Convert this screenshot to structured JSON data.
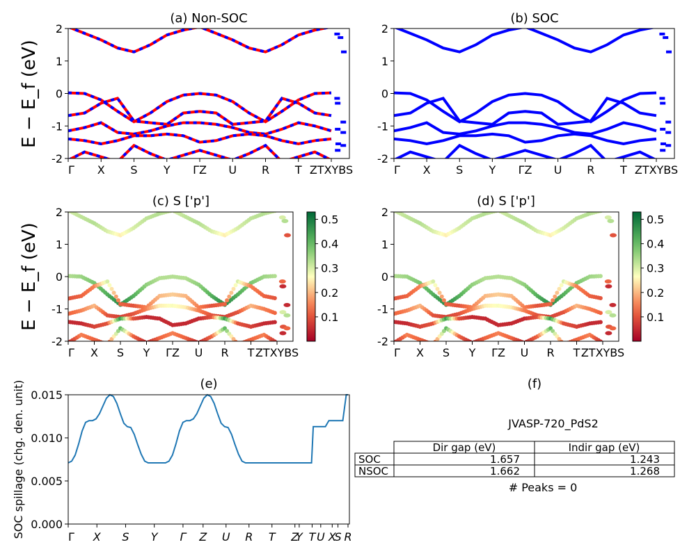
{
  "figure": {
    "material": "JVASP-720_PdS2"
  },
  "chart_data": [
    {
      "id": "a",
      "type": "line",
      "title": "(a) Non-SOC",
      "ylabel": "E − E_f (eV)",
      "ylim": [
        -2,
        2
      ],
      "yticks": [
        -2,
        -1,
        0,
        1,
        2
      ],
      "xticks": [
        "Γ",
        "X",
        "S",
        "Y",
        "ΓZ",
        "U",
        "R",
        "T",
        "ZTXYBS"
      ],
      "series_colors": [
        "#ff0000",
        "#0000ff"
      ],
      "bands": [
        {
          "x": [
            0,
            0.5,
            1,
            1.5,
            2,
            2.5,
            3,
            3.5,
            4,
            4.5,
            5,
            5.5,
            6,
            6.5,
            7,
            7.5,
            8
          ],
          "y": [
            2.05,
            1.85,
            1.65,
            1.4,
            1.28,
            1.5,
            1.8,
            1.95,
            2.05,
            1.85,
            1.65,
            1.4,
            1.28,
            1.5,
            1.8,
            1.95,
            2.05
          ]
        },
        {
          "x": [
            0,
            0.5,
            1,
            1.5,
            2,
            2.5,
            3,
            3.5,
            4,
            4.5,
            5,
            5.5,
            6,
            6.5,
            7,
            7.5,
            8
          ],
          "y": [
            0.02,
            0,
            -0.2,
            -0.55,
            -0.87,
            -0.6,
            -0.25,
            -0.05,
            0,
            -0.05,
            -0.25,
            -0.6,
            -0.87,
            -0.55,
            -0.2,
            0,
            0.02
          ]
        },
        {
          "x": [
            0,
            0.5,
            1,
            1.5,
            2,
            2.5,
            3,
            3.5,
            4,
            4.5,
            5,
            5.5,
            6,
            6.5,
            7,
            7.5,
            8
          ],
          "y": [
            -0.68,
            -0.6,
            -0.3,
            -0.15,
            -0.85,
            -0.9,
            -0.95,
            -0.6,
            -0.55,
            -0.6,
            -0.95,
            -0.9,
            -0.85,
            -0.15,
            -0.3,
            -0.6,
            -0.68
          ]
        },
        {
          "x": [
            0,
            0.5,
            1,
            1.5,
            2,
            2.5,
            3,
            3.5,
            4,
            4.5,
            5,
            5.5,
            6,
            6.5,
            7,
            7.5,
            8
          ],
          "y": [
            -1.15,
            -1.05,
            -0.9,
            -1.2,
            -1.25,
            -1.15,
            -1.0,
            -0.9,
            -0.9,
            -0.95,
            -1.05,
            -1.2,
            -1.25,
            -1.1,
            -0.9,
            -1.0,
            -1.15
          ]
        },
        {
          "x": [
            0,
            0.5,
            1,
            1.5,
            2,
            2.5,
            3,
            3.5,
            4,
            4.5,
            5,
            5.5,
            6,
            6.5,
            7,
            7.5,
            8
          ],
          "y": [
            -1.4,
            -1.45,
            -1.55,
            -1.45,
            -1.3,
            -1.3,
            -1.25,
            -1.3,
            -1.5,
            -1.45,
            -1.3,
            -1.25,
            -1.3,
            -1.45,
            -1.55,
            -1.45,
            -1.4
          ]
        },
        {
          "x": [
            0,
            0.5,
            1,
            1.5,
            2,
            2.5,
            3,
            3.5,
            4,
            4.5,
            5,
            5.5,
            6,
            6.5,
            7,
            7.5,
            8
          ],
          "y": [
            -2.05,
            -1.8,
            -1.95,
            -2.1,
            -1.6,
            -1.85,
            -2.05,
            -1.9,
            -1.75,
            -1.9,
            -2.05,
            -1.85,
            -1.6,
            -2.1,
            -1.95,
            -1.8,
            -2.05
          ]
        }
      ],
      "end_marks": [
        {
          "x": 0.15,
          "y": 1.83
        },
        {
          "x": 0.45,
          "y": 1.72
        },
        {
          "x": 0.75,
          "y": 1.28
        },
        {
          "x": 0.15,
          "y": -0.15
        },
        {
          "x": 0.2,
          "y": -0.3
        },
        {
          "x": 0.7,
          "y": -0.88
        },
        {
          "x": 0.2,
          "y": -1.1
        },
        {
          "x": 0.7,
          "y": -1.2
        },
        {
          "x": 0.25,
          "y": -1.55
        },
        {
          "x": 0.7,
          "y": -1.6
        },
        {
          "x": 0.2,
          "y": -1.75
        }
      ]
    },
    {
      "id": "b",
      "type": "line",
      "title": "(b) SOC",
      "ylim": [
        -2,
        2
      ],
      "yticks": [
        -2,
        -1,
        0,
        1,
        2
      ],
      "xticks": [
        "Γ",
        "X",
        "S",
        "Y",
        "ΓZ",
        "U",
        "R",
        "T",
        "ZTXYBS"
      ],
      "series_colors": [
        "#0000ff"
      ],
      "bands": [
        {
          "x": [
            0,
            0.5,
            1,
            1.5,
            2,
            2.5,
            3,
            3.5,
            4,
            4.5,
            5,
            5.5,
            6,
            6.5,
            7,
            7.5,
            8
          ],
          "y": [
            2.05,
            1.85,
            1.65,
            1.4,
            1.28,
            1.5,
            1.8,
            1.95,
            2.05,
            1.85,
            1.65,
            1.4,
            1.28,
            1.5,
            1.8,
            1.95,
            2.05
          ]
        },
        {
          "x": [
            0,
            0.5,
            1,
            1.5,
            2,
            2.5,
            3,
            3.5,
            4,
            4.5,
            5,
            5.5,
            6,
            6.5,
            7,
            7.5,
            8
          ],
          "y": [
            0.02,
            0,
            -0.2,
            -0.55,
            -0.87,
            -0.6,
            -0.25,
            -0.05,
            0,
            -0.05,
            -0.25,
            -0.6,
            -0.87,
            -0.55,
            -0.2,
            0,
            0.02
          ]
        },
        {
          "x": [
            0,
            0.5,
            1,
            1.5,
            2,
            2.5,
            3,
            3.5,
            4,
            4.5,
            5,
            5.5,
            6,
            6.5,
            7,
            7.5,
            8
          ],
          "y": [
            -0.68,
            -0.6,
            -0.3,
            -0.15,
            -0.85,
            -0.9,
            -0.95,
            -0.6,
            -0.55,
            -0.6,
            -0.95,
            -0.9,
            -0.85,
            -0.15,
            -0.3,
            -0.6,
            -0.68
          ]
        },
        {
          "x": [
            0,
            0.5,
            1,
            1.5,
            2,
            2.5,
            3,
            3.5,
            4,
            4.5,
            5,
            5.5,
            6,
            6.5,
            7,
            7.5,
            8
          ],
          "y": [
            -1.15,
            -1.05,
            -0.9,
            -1.2,
            -1.25,
            -1.15,
            -1.0,
            -0.9,
            -0.9,
            -0.95,
            -1.05,
            -1.2,
            -1.25,
            -1.1,
            -0.9,
            -1.0,
            -1.15
          ]
        },
        {
          "x": [
            0,
            0.5,
            1,
            1.5,
            2,
            2.5,
            3,
            3.5,
            4,
            4.5,
            5,
            5.5,
            6,
            6.5,
            7,
            7.5,
            8
          ],
          "y": [
            -1.4,
            -1.45,
            -1.55,
            -1.45,
            -1.3,
            -1.3,
            -1.25,
            -1.3,
            -1.5,
            -1.45,
            -1.3,
            -1.25,
            -1.3,
            -1.45,
            -1.55,
            -1.45,
            -1.4
          ]
        },
        {
          "x": [
            0,
            0.5,
            1,
            1.5,
            2,
            2.5,
            3,
            3.5,
            4,
            4.5,
            5,
            5.5,
            6,
            6.5,
            7,
            7.5,
            8
          ],
          "y": [
            -2.05,
            -1.8,
            -1.95,
            -2.1,
            -1.6,
            -1.85,
            -2.05,
            -1.9,
            -1.75,
            -1.9,
            -2.05,
            -1.85,
            -1.6,
            -2.1,
            -1.95,
            -1.8,
            -2.05
          ]
        }
      ],
      "end_marks": [
        {
          "x": 0.15,
          "y": 1.83
        },
        {
          "x": 0.45,
          "y": 1.72
        },
        {
          "x": 0.75,
          "y": 1.28
        },
        {
          "x": 0.15,
          "y": -0.15
        },
        {
          "x": 0.2,
          "y": -0.3
        },
        {
          "x": 0.7,
          "y": -0.88
        },
        {
          "x": 0.2,
          "y": -1.1
        },
        {
          "x": 0.7,
          "y": -1.2
        },
        {
          "x": 0.25,
          "y": -1.55
        },
        {
          "x": 0.7,
          "y": -1.6
        },
        {
          "x": 0.2,
          "y": -1.75
        }
      ]
    },
    {
      "id": "c",
      "type": "scatter",
      "title": "(c)  S ['p']",
      "ylabel": "E − E_f (eV)",
      "ylim": [
        -2,
        2
      ],
      "yticks": [
        -2,
        -1,
        0,
        1,
        2
      ],
      "xticks": [
        "Γ",
        "X",
        "S",
        "Y",
        "ΓZ",
        "U",
        "R",
        "T",
        "ZTXYBS"
      ],
      "colorbar": {
        "min": 0.0,
        "max": 0.53,
        "ticks": [
          0.1,
          0.2,
          0.3,
          0.4,
          0.5
        ],
        "colormap": "RdYlGn"
      },
      "band_weights": [
        [
          0.3,
          0.32,
          0.33,
          0.3,
          0.25,
          0.3,
          0.32,
          0.33,
          0.3,
          0.32,
          0.33,
          0.3,
          0.25,
          0.3,
          0.32,
          0.33,
          0.3
        ],
        [
          0.33,
          0.35,
          0.38,
          0.42,
          0.48,
          0.42,
          0.36,
          0.33,
          0.33,
          0.33,
          0.36,
          0.42,
          0.48,
          0.42,
          0.38,
          0.35,
          0.33
        ],
        [
          0.1,
          0.12,
          0.15,
          0.3,
          0.12,
          0.1,
          0.15,
          0.2,
          0.22,
          0.2,
          0.15,
          0.1,
          0.12,
          0.3,
          0.15,
          0.12,
          0.1
        ],
        [
          0.12,
          0.15,
          0.2,
          0.1,
          0.08,
          0.1,
          0.15,
          0.25,
          0.27,
          0.25,
          0.15,
          0.1,
          0.08,
          0.1,
          0.2,
          0.15,
          0.12
        ],
        [
          0.05,
          0.05,
          0.08,
          0.1,
          0.45,
          0.1,
          0.05,
          0.05,
          0.05,
          0.05,
          0.05,
          0.1,
          0.45,
          0.1,
          0.08,
          0.05,
          0.05
        ],
        [
          0.05,
          0.15,
          0.12,
          0.1,
          0.4,
          0.12,
          0.05,
          0.12,
          0.15,
          0.12,
          0.05,
          0.12,
          0.4,
          0.1,
          0.12,
          0.15,
          0.05
        ]
      ]
    },
    {
      "id": "d",
      "type": "scatter",
      "title": "(d) S ['p']",
      "ylim": [
        -2,
        2
      ],
      "yticks": [
        -2,
        -1,
        0,
        1,
        2
      ],
      "xticks": [
        "Γ",
        "X",
        "S",
        "Y",
        "ΓZ",
        "U",
        "R",
        "T",
        "ZTXYBS"
      ],
      "colorbar": {
        "min": 0.0,
        "max": 0.53,
        "ticks": [
          0.1,
          0.2,
          0.3,
          0.4,
          0.5
        ],
        "colormap": "RdYlGn"
      },
      "band_weights": [
        [
          0.3,
          0.32,
          0.33,
          0.3,
          0.25,
          0.3,
          0.32,
          0.33,
          0.3,
          0.32,
          0.33,
          0.3,
          0.25,
          0.3,
          0.32,
          0.33,
          0.3
        ],
        [
          0.33,
          0.35,
          0.38,
          0.42,
          0.48,
          0.42,
          0.36,
          0.33,
          0.33,
          0.33,
          0.36,
          0.42,
          0.48,
          0.42,
          0.38,
          0.35,
          0.33
        ],
        [
          0.1,
          0.12,
          0.15,
          0.3,
          0.12,
          0.1,
          0.15,
          0.2,
          0.22,
          0.2,
          0.15,
          0.1,
          0.12,
          0.3,
          0.15,
          0.12,
          0.1
        ],
        [
          0.12,
          0.15,
          0.2,
          0.1,
          0.08,
          0.1,
          0.15,
          0.25,
          0.27,
          0.25,
          0.15,
          0.1,
          0.08,
          0.1,
          0.2,
          0.15,
          0.12
        ],
        [
          0.05,
          0.05,
          0.08,
          0.1,
          0.45,
          0.1,
          0.05,
          0.05,
          0.05,
          0.05,
          0.05,
          0.1,
          0.45,
          0.1,
          0.08,
          0.05,
          0.05
        ],
        [
          0.05,
          0.15,
          0.12,
          0.1,
          0.4,
          0.12,
          0.05,
          0.12,
          0.15,
          0.12,
          0.05,
          0.12,
          0.4,
          0.1,
          0.12,
          0.15,
          0.05
        ]
      ]
    },
    {
      "id": "e",
      "type": "line",
      "title": "(e)",
      "ylabel": "SOC spillage (chg. den. unit)",
      "ylim": [
        0,
        0.015
      ],
      "yticks": [
        "0.000",
        "0.005",
        "0.010",
        "0.015"
      ],
      "xticks": [
        "Γ",
        "X",
        "S",
        "Y",
        "Γ",
        "Z",
        "U",
        "R",
        "T",
        "Z",
        "Y",
        "T",
        "U",
        "X",
        "S",
        "R"
      ],
      "x": [
        0,
        0.1,
        0.2,
        0.3,
        0.4,
        0.5,
        0.6,
        0.7,
        0.8,
        0.9,
        1.0,
        1.1,
        1.2,
        1.3,
        1.4,
        1.5,
        1.6,
        1.7,
        1.8,
        1.9,
        2.0,
        2.1,
        2.2,
        2.3,
        2.4,
        2.5,
        2.6,
        2.7,
        2.8,
        2.9,
        3.0,
        3.1,
        3.2,
        3.3,
        3.4,
        3.5,
        3.6,
        3.7,
        3.8,
        3.9,
        4.0,
        4.1,
        4.2,
        4.3,
        4.4,
        4.5,
        4.6,
        4.7,
        4.8,
        4.9,
        5.0,
        5.1,
        5.2,
        5.3,
        5.4,
        5.5,
        5.6,
        5.7,
        5.8,
        5.9,
        6.0,
        6.1,
        6.2,
        6.3,
        6.4,
        6.5,
        6.6,
        6.7,
        6.8,
        6.9,
        7.0,
        7.05,
        7.1,
        7.2,
        7.3,
        7.4,
        7.5,
        7.6,
        7.65,
        7.7,
        7.8,
        7.9,
        8.0,
        8.05
      ],
      "y": [
        0.0071,
        0.0073,
        0.008,
        0.0093,
        0.0108,
        0.0118,
        0.012,
        0.012,
        0.0122,
        0.0128,
        0.0137,
        0.0146,
        0.015,
        0.0148,
        0.014,
        0.0128,
        0.0117,
        0.0113,
        0.0112,
        0.0104,
        0.0092,
        0.0081,
        0.0073,
        0.0071,
        0.0071,
        0.0071,
        0.0071,
        0.0071,
        0.0071,
        0.0073,
        0.008,
        0.0093,
        0.0108,
        0.0118,
        0.012,
        0.012,
        0.0122,
        0.0128,
        0.0137,
        0.0146,
        0.015,
        0.0148,
        0.014,
        0.0128,
        0.0117,
        0.0113,
        0.0112,
        0.0104,
        0.0092,
        0.0081,
        0.0073,
        0.0071,
        0.0071,
        0.0071,
        0.0071,
        0.0071,
        0.0071,
        0.0071,
        0.0071,
        0.0071,
        0.0071,
        0.0071,
        0.0071,
        0.0071,
        0.0071,
        0.0071,
        0.0071,
        0.0071,
        0.0071,
        0.0071,
        0.0071,
        0.0113,
        0.0113,
        0.0113,
        0.0113,
        0.0113,
        0.012,
        0.012,
        0.012,
        0.012,
        0.012,
        0.012,
        0.015,
        0.015
      ]
    },
    {
      "id": "f",
      "type": "table",
      "title": "(f)",
      "subtitle": "JVASP-720_PdS2",
      "columns": [
        "Dir gap (eV)",
        "Indir gap (eV)"
      ],
      "rows": [
        {
          "label": "SOC",
          "values": [
            "1.657",
            "1.243"
          ]
        },
        {
          "label": "NSOC",
          "values": [
            "1.662",
            "1.268"
          ]
        }
      ],
      "footer": "# Peaks = 0"
    }
  ]
}
